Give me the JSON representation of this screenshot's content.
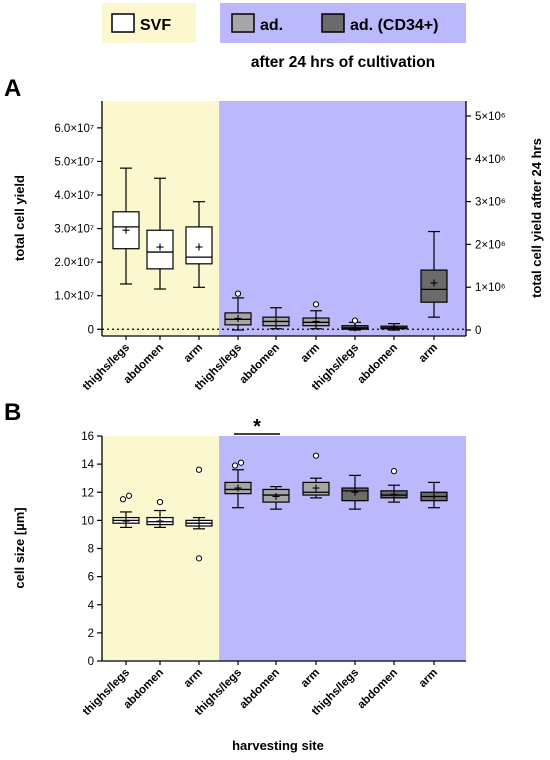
{
  "legend": {
    "svf": "SVF",
    "ad": "ad.",
    "ad_cd34": "ad. (CD34+)",
    "subtitle": "after 24 hrs of cultivation"
  },
  "colors": {
    "svf_panel": "#fbf7cf",
    "ad_panel": "#bcb8fc",
    "ad_box": "#a6a6a6",
    "ad_cd34_box": "#6b6b6b",
    "svf_box": "#ffffff"
  },
  "chart_data": [
    {
      "panel_label": "A",
      "type": "box",
      "ylabel_left": "total cell yield",
      "ylabel_right": "total cell yield after 24 hrs",
      "left_axis": {
        "ylim": [
          -2000000.0,
          68000000.0
        ],
        "ticks": [
          0,
          10000000.0,
          20000000.0,
          30000000.0,
          40000000.0,
          50000000.0,
          60000000.0
        ],
        "tick_labels": [
          "0",
          "1.0×10⁷",
          "2.0×10⁷",
          "3.0×10⁷",
          "4.0×10⁷",
          "5.0×10⁷",
          "6.0×10⁷"
        ]
      },
      "right_axis": {
        "ylim": [
          -140000.0,
          5350000.0
        ],
        "ticks": [
          0,
          1000000.0,
          2000000.0,
          3000000.0,
          4000000.0,
          5000000.0
        ],
        "tick_labels": [
          "0",
          "1×10⁶",
          "2×10⁶",
          "3×10⁶",
          "4×10⁶",
          "5×10⁶"
        ]
      },
      "dotted_zero_line": true,
      "categories": [
        "thighs/legs",
        "abdomen",
        "arm",
        "thighs/legs",
        "abdomen",
        "arm",
        "thighs/legs",
        "abdomen",
        "arm"
      ],
      "groups": [
        {
          "name": "SVF",
          "axis": "left",
          "color": "#ffffff",
          "boxes": [
            {
              "category": "thighs/legs",
              "min": 13500000.0,
              "q1": 24000000.0,
              "median": 30500000.0,
              "q3": 35000000.0,
              "max": 48000000.0,
              "mean": 29500000.0,
              "outliers": []
            },
            {
              "category": "abdomen",
              "min": 12000000.0,
              "q1": 18000000.0,
              "median": 23000000.0,
              "q3": 29500000.0,
              "max": 45000000.0,
              "mean": 24500000.0,
              "outliers": []
            },
            {
              "category": "arm",
              "min": 12500000.0,
              "q1": 19500000.0,
              "median": 21500000.0,
              "q3": 30500000.0,
              "max": 38000000.0,
              "mean": 24500000.0,
              "outliers": []
            }
          ]
        },
        {
          "name": "ad.",
          "axis": "right",
          "color": "#a6a6a6",
          "boxes": [
            {
              "category": "thighs/legs",
              "min": 0.0,
              "q1": 120000.0,
              "median": 250000.0,
              "q3": 400000.0,
              "max": 750000.0,
              "mean": 270000.0,
              "outliers": [
                850000.0
              ]
            },
            {
              "category": "abdomen",
              "min": 30000.0,
              "q1": 100000.0,
              "median": 200000.0,
              "q3": 300000.0,
              "max": 520000.0,
              "mean": 200000.0,
              "outliers": []
            },
            {
              "category": "arm",
              "min": 30000.0,
              "q1": 100000.0,
              "median": 180000.0,
              "q3": 280000.0,
              "max": 450000.0,
              "mean": 200000.0,
              "outliers": [
                600000.0
              ]
            }
          ]
        },
        {
          "name": "ad. (CD34+)",
          "axis": "right",
          "color": "#6b6b6b",
          "boxes": [
            {
              "category": "thighs/legs",
              "min": 0.0,
              "q1": 20000.0,
              "median": 50000.0,
              "q3": 100000.0,
              "max": 180000.0,
              "mean": 50000.0,
              "outliers": [
                220000.0
              ]
            },
            {
              "category": "abdomen",
              "min": 0.0,
              "q1": 30000.0,
              "median": 50000.0,
              "q3": 90000.0,
              "max": 150000.0,
              "mean": 60000.0,
              "outliers": []
            },
            {
              "category": "arm",
              "min": 300000.0,
              "q1": 650000.0,
              "median": 950000.0,
              "q3": 1400000.0,
              "max": 2300000.0,
              "mean": 1100000.0,
              "outliers": []
            }
          ]
        }
      ]
    },
    {
      "panel_label": "B",
      "type": "box",
      "ylabel": "cell size [µm]",
      "xlabel": "harvesting site",
      "ylim": [
        0,
        16
      ],
      "ticks": [
        0,
        2,
        4,
        6,
        8,
        10,
        12,
        14,
        16
      ],
      "tick_labels": [
        "0",
        "2",
        "4",
        "6",
        "8",
        "10",
        "12",
        "14",
        "16"
      ],
      "significance": {
        "label": "*",
        "between": [
          "ad. thighs/legs",
          "ad. abdomen"
        ]
      },
      "categories": [
        "thighs/legs",
        "abdomen",
        "arm",
        "thighs/legs",
        "abdomen",
        "arm",
        "thighs/legs",
        "abdomen",
        "arm"
      ],
      "groups": [
        {
          "name": "SVF",
          "color": "#ffffff",
          "boxes": [
            {
              "category": "thighs/legs",
              "min": 9.5,
              "q1": 9.8,
              "median": 10.0,
              "q3": 10.2,
              "max": 10.6,
              "mean": 9.95,
              "outliers": [
                11.5,
                11.75
              ]
            },
            {
              "category": "abdomen",
              "min": 9.5,
              "q1": 9.7,
              "median": 9.9,
              "q3": 10.2,
              "max": 10.7,
              "mean": 9.95,
              "outliers": [
                11.3
              ]
            },
            {
              "category": "arm",
              "min": 9.4,
              "q1": 9.6,
              "median": 9.8,
              "q3": 10.0,
              "max": 10.2,
              "mean": 9.8,
              "outliers": [
                13.6,
                7.3
              ]
            }
          ]
        },
        {
          "name": "ad.",
          "color": "#a6a6a6",
          "boxes": [
            {
              "category": "thighs/legs",
              "min": 10.9,
              "q1": 11.9,
              "median": 12.2,
              "q3": 12.7,
              "max": 13.6,
              "mean": 12.3,
              "outliers": [
                13.9,
                14.1
              ]
            },
            {
              "category": "abdomen",
              "min": 10.8,
              "q1": 11.3,
              "median": 11.8,
              "q3": 12.2,
              "max": 12.4,
              "mean": 11.7,
              "outliers": []
            },
            {
              "category": "arm",
              "min": 11.6,
              "q1": 11.8,
              "median": 12.0,
              "q3": 12.7,
              "max": 13.0,
              "mean": 12.3,
              "outliers": [
                14.6
              ]
            }
          ]
        },
        {
          "name": "ad. (CD34+)",
          "color": "#6b6b6b",
          "boxes": [
            {
              "category": "thighs/legs",
              "min": 10.8,
              "q1": 11.4,
              "median": 12.1,
              "q3": 12.3,
              "max": 13.2,
              "mean": 12.0,
              "outliers": []
            },
            {
              "category": "abdomen",
              "min": 11.3,
              "q1": 11.6,
              "median": 11.8,
              "q3": 12.1,
              "max": 12.5,
              "mean": 11.85,
              "outliers": [
                13.5
              ]
            },
            {
              "category": "arm",
              "min": 10.9,
              "q1": 11.4,
              "median": 11.7,
              "q3": 12.0,
              "max": 12.7,
              "mean": 11.7,
              "outliers": []
            }
          ]
        }
      ]
    }
  ]
}
